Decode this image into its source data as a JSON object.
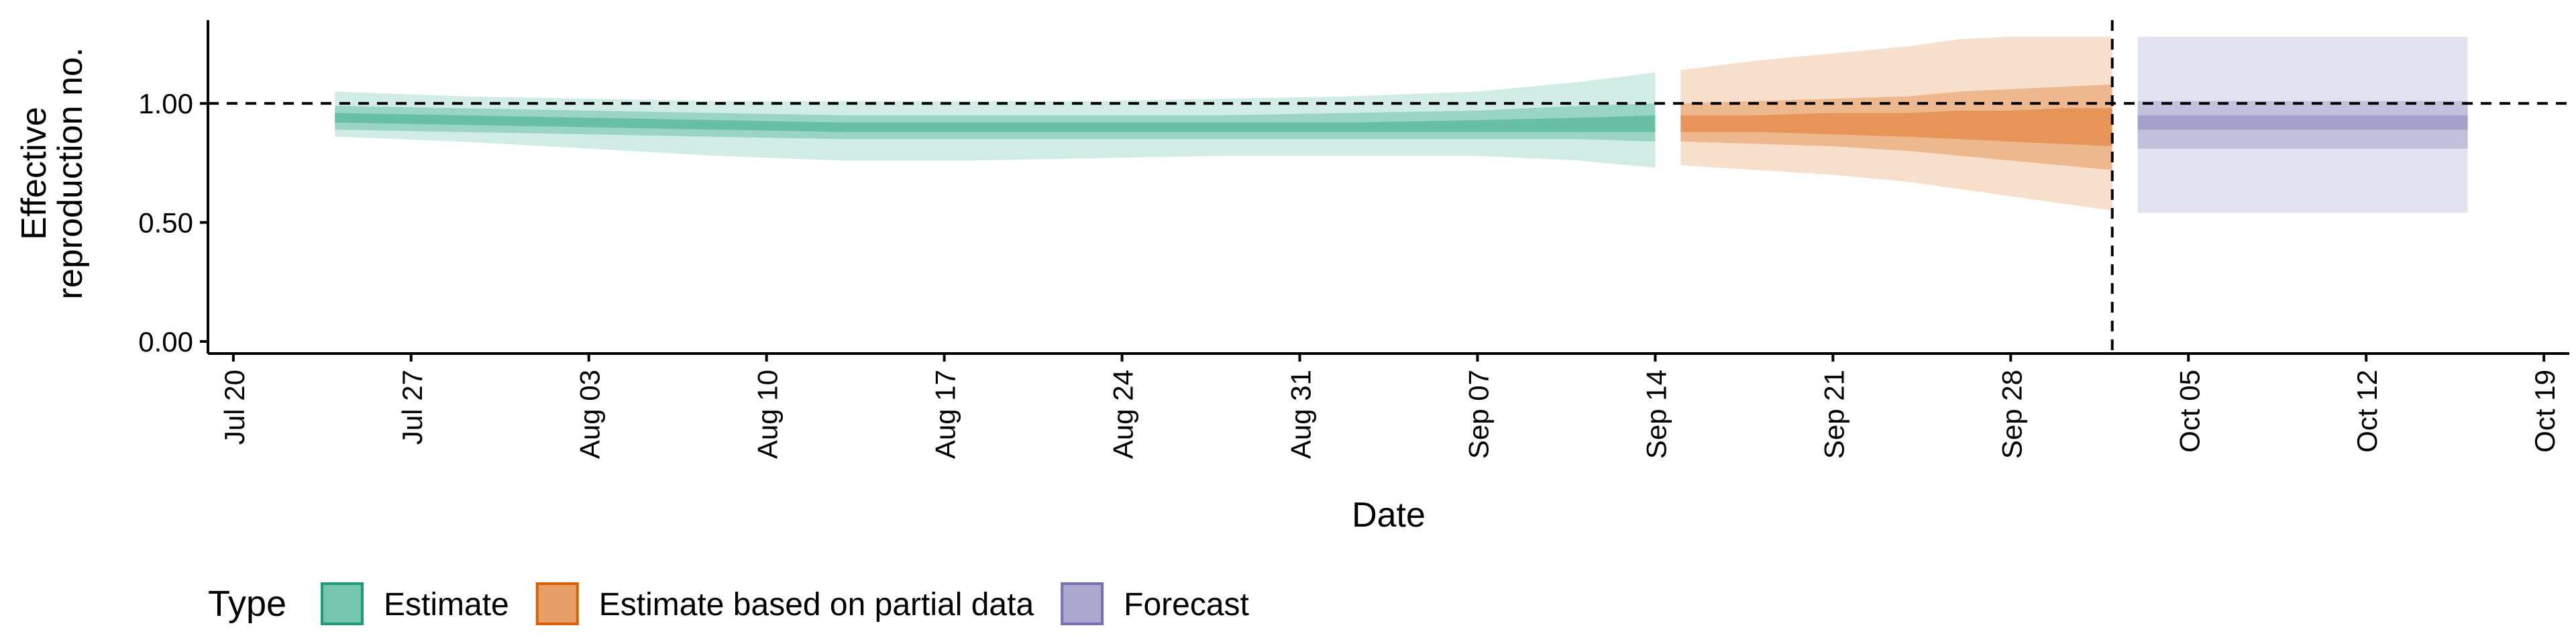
{
  "chart_data": {
    "type": "area",
    "xlabel": "Date",
    "ylabel": "Effective\nreproduction no.",
    "ylim": [
      0,
      1.35
    ],
    "xlim": [
      "2020-07-19",
      "2020-10-20"
    ],
    "y_ticks": [
      "0.00",
      "0.50",
      "1.00"
    ],
    "x_ticks": [
      "Jul 20",
      "Jul 27",
      "Aug 03",
      "Aug 10",
      "Aug 17",
      "Aug 24",
      "Aug 31",
      "Sep 07",
      "Sep 14",
      "Sep 21",
      "Sep 28",
      "Oct 05",
      "Oct 12",
      "Oct 19"
    ],
    "x_tick_dates": [
      "2020-07-20",
      "2020-07-27",
      "2020-08-03",
      "2020-08-10",
      "2020-08-17",
      "2020-08-24",
      "2020-08-31",
      "2020-09-07",
      "2020-09-14",
      "2020-09-21",
      "2020-09-28",
      "2020-10-05",
      "2020-10-12",
      "2020-10-19"
    ],
    "reference_line_y": 1.0,
    "forecast_start_line_x": "2020-10-02",
    "grid": false,
    "legend": {
      "title": "Type",
      "placement": "bottom-left"
    },
    "series": [
      {
        "name": "Estimate",
        "color": "#1B9E77",
        "x": [
          "2020-07-24",
          "2020-07-29",
          "2020-08-03",
          "2020-08-08",
          "2020-08-13",
          "2020-08-18",
          "2020-08-23",
          "2020-08-28",
          "2020-09-02",
          "2020-09-07",
          "2020-09-11",
          "2020-09-14"
        ],
        "median": [
          0.94,
          0.93,
          0.92,
          0.91,
          0.9,
          0.9,
          0.9,
          0.9,
          0.9,
          0.91,
          0.92,
          0.92
        ],
        "lower_50": [
          0.92,
          0.91,
          0.9,
          0.89,
          0.88,
          0.88,
          0.88,
          0.88,
          0.88,
          0.88,
          0.88,
          0.88
        ],
        "upper_50": [
          0.96,
          0.95,
          0.94,
          0.93,
          0.92,
          0.92,
          0.92,
          0.92,
          0.92,
          0.93,
          0.94,
          0.95
        ],
        "lower_90": [
          0.89,
          0.88,
          0.87,
          0.86,
          0.85,
          0.85,
          0.85,
          0.85,
          0.85,
          0.85,
          0.85,
          0.84
        ],
        "upper_90": [
          0.99,
          0.98,
          0.97,
          0.96,
          0.95,
          0.95,
          0.95,
          0.95,
          0.96,
          0.97,
          0.99,
          1.0
        ],
        "lower_95": [
          0.86,
          0.84,
          0.81,
          0.78,
          0.76,
          0.76,
          0.77,
          0.78,
          0.78,
          0.78,
          0.76,
          0.73
        ],
        "upper_95": [
          1.05,
          1.03,
          1.02,
          1.01,
          1.01,
          1.01,
          1.01,
          1.02,
          1.03,
          1.05,
          1.09,
          1.13
        ]
      },
      {
        "name": "Estimate based on partial data",
        "color": "#D95F02",
        "x": [
          "2020-09-15",
          "2020-09-18",
          "2020-09-21",
          "2020-09-24",
          "2020-09-26",
          "2020-09-28",
          "2020-09-30",
          "2020-10-02"
        ],
        "median": [
          0.92,
          0.92,
          0.92,
          0.92,
          0.92,
          0.92,
          0.92,
          0.91
        ],
        "lower_50": [
          0.88,
          0.88,
          0.87,
          0.86,
          0.85,
          0.84,
          0.83,
          0.82
        ],
        "upper_50": [
          0.95,
          0.95,
          0.96,
          0.96,
          0.97,
          0.97,
          0.98,
          0.98
        ],
        "lower_90": [
          0.84,
          0.83,
          0.82,
          0.8,
          0.78,
          0.76,
          0.74,
          0.72
        ],
        "upper_90": [
          1.0,
          1.01,
          1.02,
          1.03,
          1.05,
          1.06,
          1.07,
          1.08
        ],
        "lower_95": [
          0.74,
          0.72,
          0.7,
          0.67,
          0.64,
          0.61,
          0.58,
          0.55
        ],
        "upper_95": [
          1.14,
          1.18,
          1.21,
          1.24,
          1.27,
          1.28,
          1.28,
          1.28
        ]
      },
      {
        "name": "Forecast",
        "color": "#7570B3",
        "x": [
          "2020-10-03",
          "2020-10-16"
        ],
        "median": [
          0.92,
          0.92
        ],
        "lower_50": [
          0.89,
          0.89
        ],
        "upper_50": [
          0.95,
          0.95
        ],
        "lower_90": [
          0.81,
          0.81
        ],
        "upper_90": [
          1.01,
          1.01
        ],
        "lower_95": [
          0.54,
          0.54
        ],
        "upper_95": [
          1.28,
          1.28
        ]
      }
    ]
  }
}
